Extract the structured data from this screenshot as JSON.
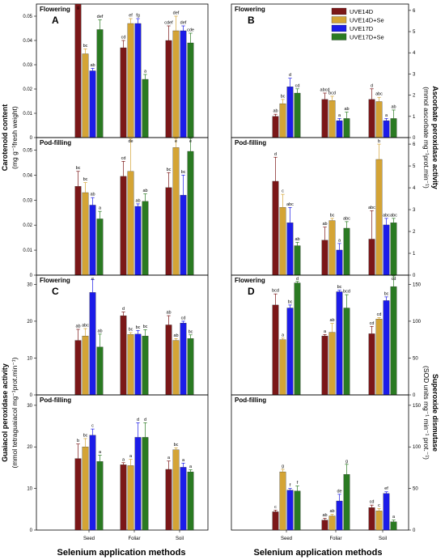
{
  "figure": {
    "legend": [
      {
        "name": "UVE14D",
        "color": "#7b1718"
      },
      {
        "name": "UVE14D+Se",
        "color": "#d4a435"
      },
      {
        "name": "UVE17D",
        "color": "#1c1ce8"
      },
      {
        "name": "UVE17D+Se",
        "color": "#2a7a22"
      }
    ],
    "xlabel": "Selenium application methods",
    "ylabel_left_top": [
      "Carotenoid content",
      "(mg g⁻¹fresh weight)"
    ],
    "ylabel_right_top": [
      "Ascorbate peroxidase activity",
      "(mmol ascorbate mg⁻¹prot.min⁻¹)"
    ],
    "ylabel_left_bottom": [
      "Guaiacol peroxidase activity",
      "(mmol tetraguaiacol mg⁻¹prot.min⁻¹)"
    ],
    "ylabel_right_bottom": [
      "Superoxide dismutase",
      "(SOD units mg⁻¹ min⁻¹ prot.⁻¹)"
    ]
  },
  "chart_data": [
    {
      "type": "bar",
      "letter": "A",
      "stage": "Flowering",
      "categories": [
        "Seed",
        "Foliar",
        "Soil"
      ],
      "ylim": [
        0,
        0.055
      ],
      "yticks": [
        0,
        0.01,
        0.02,
        0.03,
        0.04,
        0.05
      ],
      "series": [
        {
          "name": "UVE14D",
          "values": [
            0.055,
            0.037,
            0.04
          ],
          "errors": [
            0.003,
            0.003,
            0.006
          ],
          "labels": [
            "g",
            "cd",
            "cdef"
          ]
        },
        {
          "name": "UVE14D+Se",
          "values": [
            0.0345,
            0.047,
            0.044
          ],
          "errors": [
            0.002,
            0.002,
            0.006
          ],
          "labels": [
            "bc",
            "ef",
            "def"
          ]
        },
        {
          "name": "UVE17D",
          "values": [
            0.0275,
            0.047,
            0.044
          ],
          "errors": [
            0.001,
            0.002,
            0.002
          ],
          "labels": [
            "ab",
            "fg",
            "def"
          ]
        },
        {
          "name": "UVE17D+Se",
          "values": [
            0.0445,
            0.024,
            0.039
          ],
          "errors": [
            0.004,
            0.002,
            0.004
          ],
          "labels": [
            "def",
            "a",
            "cde"
          ]
        }
      ]
    },
    {
      "type": "bar",
      "letter": "B",
      "stage": "Flowering",
      "categories": [
        "Seed",
        "Foliar",
        "Soil"
      ],
      "ylim": [
        0,
        6.3
      ],
      "yticks": [
        0,
        1,
        2,
        3,
        4,
        5,
        6
      ],
      "series": [
        {
          "name": "UVE14D",
          "values": [
            1.0,
            1.8,
            1.8
          ],
          "errors": [
            0.1,
            0.3,
            0.5
          ],
          "labels": [
            "ab",
            "abcd",
            "d"
          ]
        },
        {
          "name": "UVE14D+Se",
          "values": [
            1.6,
            1.75,
            1.7
          ],
          "errors": [
            0.2,
            0.2,
            0.2
          ],
          "labels": [
            "bc",
            "bcd",
            "abc"
          ]
        },
        {
          "name": "UVE17D",
          "values": [
            2.4,
            0.8,
            0.8
          ],
          "errors": [
            0.4,
            0.1,
            0.1
          ],
          "labels": [
            "d",
            "a",
            "a"
          ]
        },
        {
          "name": "UVE17D+Se",
          "values": [
            2.1,
            0.9,
            0.9
          ],
          "errors": [
            0.2,
            0.3,
            0.4
          ],
          "labels": [
            "cd",
            "ab",
            "ab"
          ]
        }
      ]
    },
    {
      "type": "bar",
      "letter": "",
      "stage": "Pod-filling",
      "categories": [
        "Seed",
        "Foliar",
        "Soil"
      ],
      "ylim": [
        0,
        0.055
      ],
      "yticks": [
        0,
        0.01,
        0.02,
        0.03,
        0.04,
        0.05
      ],
      "series": [
        {
          "name": "UVE14D",
          "values": [
            0.0355,
            0.0395,
            0.035
          ],
          "errors": [
            0.006,
            0.006,
            0.006
          ],
          "labels": [
            "bc",
            "cd",
            "bc"
          ]
        },
        {
          "name": "UVE14D+Se",
          "values": [
            0.033,
            0.0415,
            0.051
          ],
          "errors": [
            0.004,
            0.013,
            0.005
          ],
          "labels": [
            "bc",
            "de",
            "e"
          ]
        },
        {
          "name": "UVE17D",
          "values": [
            0.028,
            0.0275,
            0.032
          ],
          "errors": [
            0.003,
            0.001,
            0.008
          ],
          "labels": [
            "ab",
            "ab",
            "bc"
          ]
        },
        {
          "name": "UVE17D+Se",
          "values": [
            0.0225,
            0.0295,
            0.0495
          ],
          "errors": [
            0.003,
            0.003,
            0.014
          ],
          "labels": [
            "a",
            "ab",
            "e"
          ]
        }
      ]
    },
    {
      "type": "bar",
      "letter": "",
      "stage": "Pod-filling",
      "categories": [
        "Seed",
        "Foliar",
        "Soil"
      ],
      "ylim": [
        0,
        6.3
      ],
      "yticks": [
        0,
        1,
        2,
        3,
        4,
        5,
        6
      ],
      "series": [
        {
          "name": "UVE14D",
          "values": [
            4.3,
            1.6,
            1.65
          ],
          "errors": [
            1.1,
            0.6,
            1.3
          ],
          "labels": [
            "d",
            "ab",
            "abc"
          ]
        },
        {
          "name": "UVE14D+Se",
          "values": [
            3.1,
            2.5,
            5.3
          ],
          "errors": [
            0.6,
            0.1,
            0.7
          ],
          "labels": [
            "c",
            "bc",
            "b"
          ]
        },
        {
          "name": "UVE17D",
          "values": [
            2.4,
            1.15,
            2.3
          ],
          "errors": [
            0.7,
            0.3,
            0.3
          ],
          "labels": [
            "abc",
            "a",
            "abc"
          ]
        },
        {
          "name": "UVE17D+Se",
          "values": [
            1.35,
            2.15,
            2.4
          ],
          "errors": [
            0.15,
            0.3,
            0.2
          ],
          "labels": [
            "ab",
            "abc",
            "abc"
          ]
        }
      ]
    },
    {
      "type": "bar",
      "letter": "C",
      "stage": "Flowering",
      "categories": [
        "Seed",
        "Foliar",
        "Soil"
      ],
      "ylim": [
        0,
        32.5
      ],
      "yticks": [
        0,
        10,
        20,
        30
      ],
      "series": [
        {
          "name": "UVE14D",
          "values": [
            14.8,
            21.5,
            19.0
          ],
          "errors": [
            3.0,
            1.0,
            2.5
          ],
          "labels": [
            "ab",
            "d",
            "ab"
          ]
        },
        {
          "name": "UVE14D+Se",
          "values": [
            16.0,
            16.4,
            14.8
          ],
          "errors": [
            2.0,
            0.5,
            0.5
          ],
          "labels": [
            "abc",
            "bc",
            "ab"
          ]
        },
        {
          "name": "UVE17D",
          "values": [
            27.8,
            16.5,
            19.5
          ],
          "errors": [
            3.5,
            1.0,
            0.5
          ],
          "labels": [
            "e",
            "bc",
            "cd"
          ]
        },
        {
          "name": "UVE17D+Se",
          "values": [
            13.0,
            16.0,
            15.3
          ],
          "errors": [
            3.5,
            1.7,
            1.0
          ],
          "labels": [
            "ab",
            "bc",
            "bc"
          ]
        }
      ]
    },
    {
      "type": "bar",
      "letter": "D",
      "stage": "Flowering",
      "categories": [
        "Seed",
        "Foliar",
        "Soil"
      ],
      "ylim": [
        0,
        162.5
      ],
      "yticks": [
        0,
        50,
        100,
        150
      ],
      "series": [
        {
          "name": "UVE14D",
          "values": [
            122,
            80,
            83
          ],
          "errors": [
            15,
            2,
            10
          ],
          "labels": [
            "bcd",
            "a",
            "cd"
          ]
        },
        {
          "name": "UVE14D+Se",
          "values": [
            75,
            85,
            103
          ],
          "errors": [
            2,
            12,
            2
          ],
          "labels": [
            "a",
            "ab",
            "cd"
          ]
        },
        {
          "name": "UVE17D",
          "values": [
            118,
            140,
            128
          ],
          "errors": [
            4,
            2,
            5
          ],
          "labels": [
            "bc",
            "bc",
            "bc"
          ]
        },
        {
          "name": "UVE17D+Se",
          "values": [
            152,
            118,
            147
          ],
          "errors": [
            2,
            18,
            20
          ],
          "labels": [
            "d",
            "bcd",
            "cd"
          ]
        }
      ]
    },
    {
      "type": "bar",
      "letter": "",
      "stage": "Pod-filling",
      "categories": [
        "Seed",
        "Foliar",
        "Soil"
      ],
      "ylim": [
        0,
        32.5
      ],
      "yticks": [
        0,
        10,
        20,
        30
      ],
      "series": [
        {
          "name": "UVE14D",
          "values": [
            17.2,
            15.7,
            14.6
          ],
          "errors": [
            3.5,
            0.5,
            2.0
          ],
          "labels": [
            "b",
            "a",
            "a"
          ]
        },
        {
          "name": "UVE14D+Se",
          "values": [
            20.0,
            15.5,
            19.3
          ],
          "errors": [
            2.0,
            1.5,
            0.5
          ],
          "labels": [
            "bc",
            "a",
            "bc"
          ]
        },
        {
          "name": "UVE17D",
          "values": [
            22.8,
            22.3,
            15.1
          ],
          "errors": [
            1.5,
            3.5,
            1.0
          ],
          "labels": [
            "c",
            "d",
            "a"
          ]
        },
        {
          "name": "UVE17D+Se",
          "values": [
            16.5,
            22.3,
            14.0
          ],
          "errors": [
            1.5,
            3.5,
            0.5
          ],
          "labels": [
            "a",
            "d",
            "a"
          ]
        }
      ]
    },
    {
      "type": "bar",
      "letter": "",
      "stage": "Pod-filling",
      "categories": [
        "Seed",
        "Foliar",
        "Soil"
      ],
      "ylim": [
        0,
        162.5
      ],
      "yticks": [
        0,
        50,
        100,
        150
      ],
      "series": [
        {
          "name": "UVE14D",
          "values": [
            22,
            12,
            27
          ],
          "errors": [
            2,
            2,
            3
          ],
          "labels": [
            "c",
            "ab",
            "cd"
          ]
        },
        {
          "name": "UVE14D+Se",
          "values": [
            70,
            17,
            23
          ],
          "errors": [
            3,
            2,
            3
          ],
          "labels": [
            "g",
            "ab",
            "c"
          ]
        },
        {
          "name": "UVE17D",
          "values": [
            48,
            35,
            44
          ],
          "errors": [
            2,
            8,
            2
          ],
          "labels": [
            "f",
            "de",
            "ef"
          ]
        },
        {
          "name": "UVE17D+Se",
          "values": [
            47,
            67,
            10
          ],
          "errors": [
            6,
            12,
            2
          ],
          "labels": [
            "f",
            "g",
            "a"
          ]
        }
      ]
    }
  ]
}
